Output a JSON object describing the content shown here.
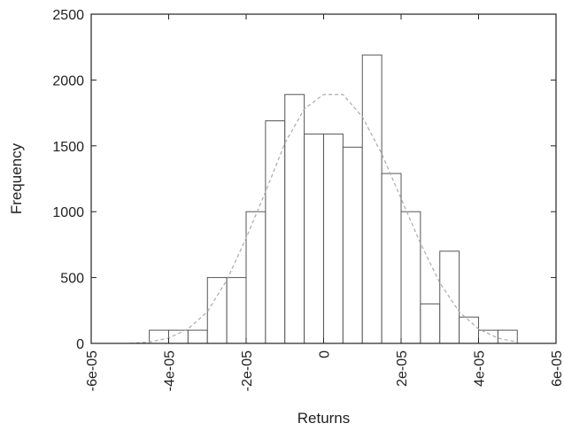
{
  "chart_data": {
    "type": "bar",
    "title": "",
    "xlabel": "Returns",
    "ylabel": "Frequency",
    "xlim": [
      -6e-05,
      6e-05
    ],
    "ylim": [
      0,
      2500
    ],
    "bin_width": 5e-06,
    "x_ticks": [
      -6e-05,
      -4e-05,
      -2e-05,
      0,
      2e-05,
      4e-05,
      6e-05
    ],
    "x_tick_labels": [
      "-6e-05",
      "-4e-05",
      "-2e-05",
      "0",
      "2e-05",
      "4e-05",
      "6e-05"
    ],
    "y_ticks": [
      0,
      500,
      1000,
      1500,
      2000,
      2500
    ],
    "y_tick_labels": [
      "0",
      "500",
      "1000",
      "1500",
      "2000",
      "2500"
    ],
    "grid": false,
    "series": [
      {
        "kind": "histogram",
        "bins": [
          {
            "x0": -4.5e-05,
            "x1": -4e-05,
            "value": 100
          },
          {
            "x0": -4e-05,
            "x1": -3.5e-05,
            "value": 100
          },
          {
            "x0": -3.5e-05,
            "x1": -3e-05,
            "value": 100
          },
          {
            "x0": -3e-05,
            "x1": -2.5e-05,
            "value": 500
          },
          {
            "x0": -2.5e-05,
            "x1": -2e-05,
            "value": 500
          },
          {
            "x0": -2e-05,
            "x1": -1.5e-05,
            "value": 1000
          },
          {
            "x0": -1.5e-05,
            "x1": -1e-05,
            "value": 1690
          },
          {
            "x0": -1e-05,
            "x1": -5e-06,
            "value": 1890
          },
          {
            "x0": -5e-06,
            "x1": 0,
            "value": 1590
          },
          {
            "x0": 0,
            "x1": 5e-06,
            "value": 1590
          },
          {
            "x0": 5e-06,
            "x1": 1e-05,
            "value": 1490
          },
          {
            "x0": 1e-05,
            "x1": 1.5e-05,
            "value": 2190
          },
          {
            "x0": 1.5e-05,
            "x1": 2e-05,
            "value": 1290
          },
          {
            "x0": 2e-05,
            "x1": 2.5e-05,
            "value": 1000
          },
          {
            "x0": 2.5e-05,
            "x1": 3e-05,
            "value": 300
          },
          {
            "x0": 3e-05,
            "x1": 3.5e-05,
            "value": 700
          },
          {
            "x0": 3.5e-05,
            "x1": 4e-05,
            "value": 200
          },
          {
            "x0": 4e-05,
            "x1": 4.5e-05,
            "value": 100
          },
          {
            "x0": 4.5e-05,
            "x1": 5e-05,
            "value": 100
          }
        ],
        "colors": {
          "fill": "#ffffff",
          "stroke": "#555555"
        }
      },
      {
        "kind": "line",
        "style": "dashed",
        "color": "#aaaaaa",
        "x": [
          -5e-05,
          -4.5e-05,
          -4e-05,
          -3.5e-05,
          -3e-05,
          -2.5e-05,
          -2e-05,
          -1.5e-05,
          -1e-05,
          -5e-06,
          0,
          5e-06,
          1e-05,
          1.5e-05,
          2e-05,
          2.5e-05,
          3e-05,
          3.5e-05,
          4e-05,
          4.5e-05,
          5e-05
        ],
        "y": [
          0,
          10,
          40,
          110,
          240,
          480,
          800,
          1150,
          1520,
          1780,
          1890,
          1890,
          1720,
          1440,
          1100,
          760,
          460,
          240,
          110,
          40,
          10
        ]
      }
    ]
  }
}
